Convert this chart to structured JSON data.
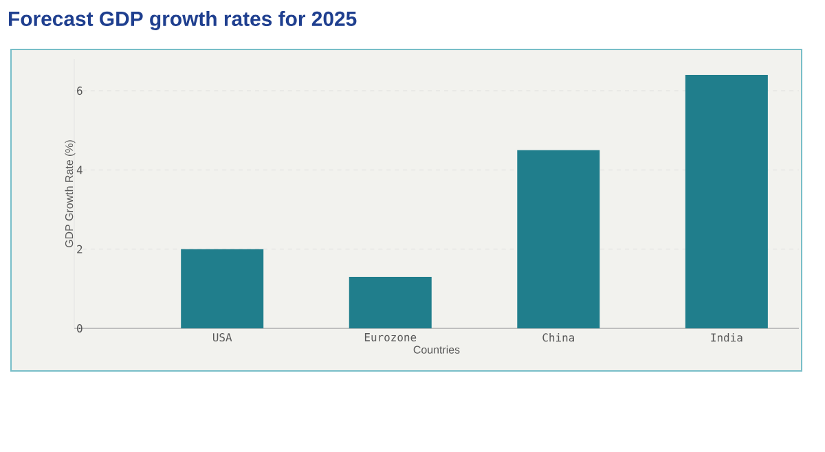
{
  "chart_data": {
    "type": "bar",
    "title": "Forecast GDP growth rates for 2025",
    "xlabel": "Countries",
    "ylabel": "GDP Growth Rate (%)",
    "categories": [
      "USA",
      "Eurozone",
      "China",
      "India"
    ],
    "values": [
      2.0,
      1.3,
      4.5,
      6.4
    ],
    "color": "#207e8c",
    "ylim": [
      0,
      6.8
    ],
    "yticks": [
      0,
      2,
      4,
      6
    ],
    "grid": "y"
  }
}
